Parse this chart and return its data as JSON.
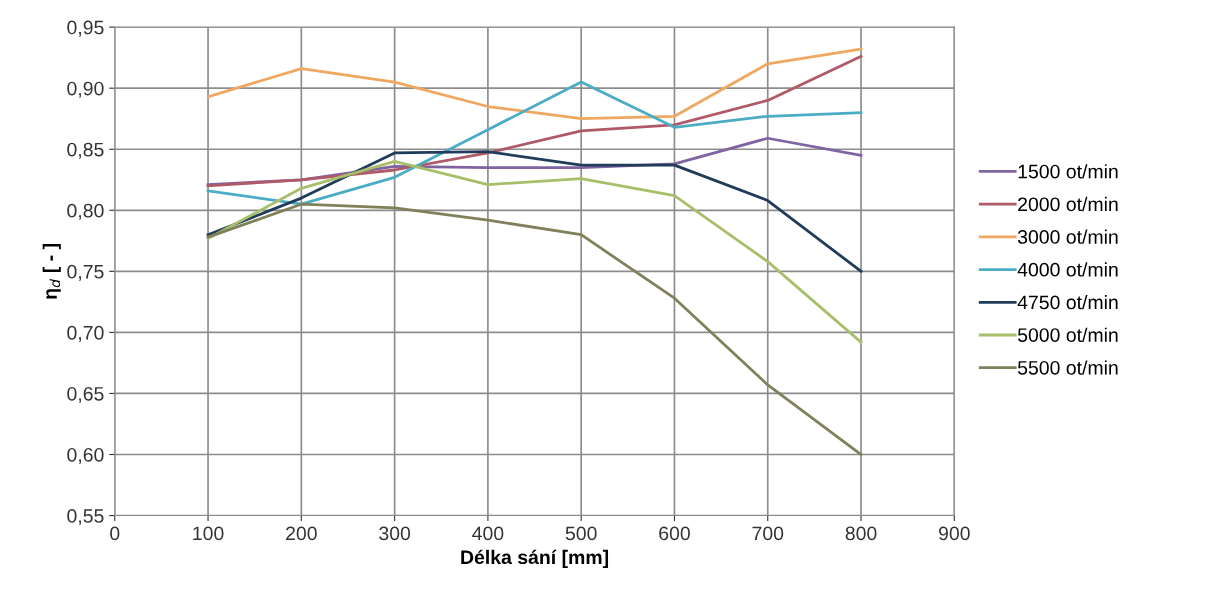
{
  "chart_data": {
    "type": "line",
    "xlabel": "Délka sání [mm]",
    "ylabel": "η$_{d}$ [ - ]",
    "x": [
      100,
      200,
      300,
      400,
      500,
      600,
      700,
      800
    ],
    "xlim": [
      0,
      900
    ],
    "xticks": [
      0,
      100,
      200,
      300,
      400,
      500,
      600,
      700,
      800,
      900
    ],
    "ylim": [
      0.55,
      0.95
    ],
    "yticks": [
      {
        "value": 0.55,
        "label": "0,55"
      },
      {
        "value": 0.6,
        "label": "0,60"
      },
      {
        "value": 0.65,
        "label": "0,65"
      },
      {
        "value": 0.7,
        "label": "0,70"
      },
      {
        "value": 0.75,
        "label": "0,75"
      },
      {
        "value": 0.8,
        "label": "0,80"
      },
      {
        "value": 0.85,
        "label": "0,85"
      },
      {
        "value": 0.9,
        "label": "0,90"
      },
      {
        "value": 0.95,
        "label": "0,95"
      }
    ],
    "grid": true,
    "legend": "right",
    "line_style": "solid",
    "series": [
      {
        "name": "1500 ot/min",
        "color": "#8064a2",
        "values": [
          0.821,
          0.825,
          0.836,
          0.835,
          0.835,
          0.838,
          0.859,
          0.845
        ]
      },
      {
        "name": "2000 ot/min",
        "color": "#b05a68",
        "values": [
          0.82,
          0.825,
          0.833,
          0.847,
          0.865,
          0.87,
          0.89,
          0.926
        ]
      },
      {
        "name": "3000 ot/min",
        "color": "#f0a860",
        "values": [
          0.893,
          0.916,
          0.905,
          0.885,
          0.875,
          0.877,
          0.92,
          0.932
        ]
      },
      {
        "name": "4000 ot/min",
        "color": "#4bacc6",
        "values": [
          0.816,
          0.805,
          0.827,
          0.866,
          0.905,
          0.868,
          0.877,
          0.88
        ]
      },
      {
        "name": "4750 ot/min",
        "color": "#1f3c5a",
        "values": [
          0.78,
          0.81,
          0.847,
          0.848,
          0.837,
          0.837,
          0.808,
          0.75
        ]
      },
      {
        "name": "5000 ot/min",
        "color": "#a8bf6a",
        "values": [
          0.777,
          0.818,
          0.84,
          0.821,
          0.826,
          0.812,
          0.758,
          0.692
        ]
      },
      {
        "name": "5500 ot/min",
        "color": "#80805a",
        "values": [
          0.778,
          0.805,
          0.802,
          0.792,
          0.78,
          0.728,
          0.657,
          0.6
        ]
      }
    ]
  }
}
